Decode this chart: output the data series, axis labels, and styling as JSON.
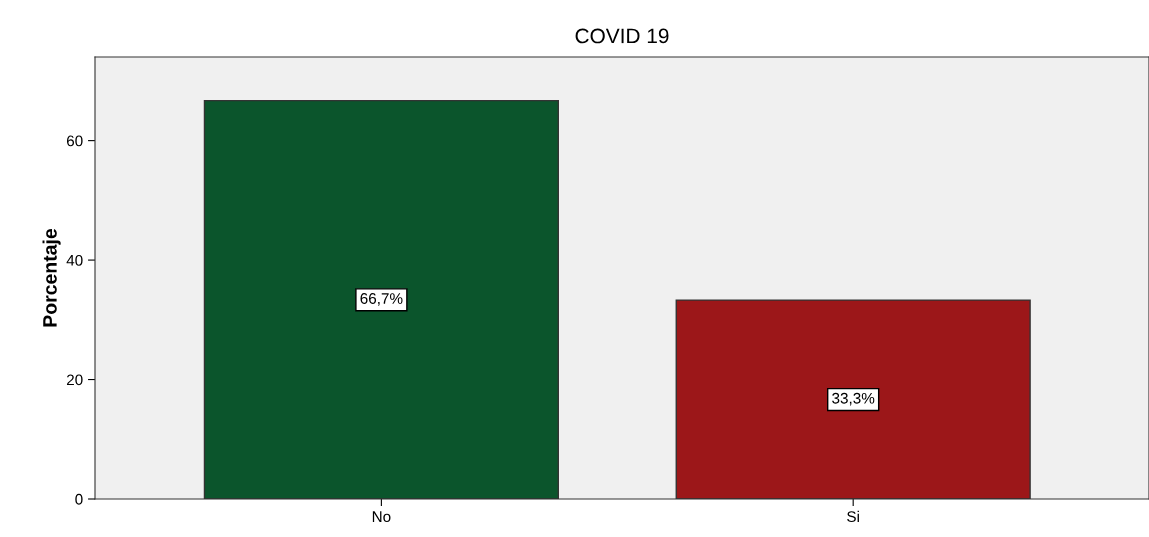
{
  "chart_data": {
    "type": "bar",
    "title": "COVID 19",
    "ylabel": "Porcentaje",
    "categories": [
      "No",
      "Si"
    ],
    "values": [
      66.7,
      33.3
    ],
    "colors": [
      "#0b552c",
      "#9c1719"
    ],
    "value_labels": [
      "66,7%",
      "33,3%"
    ],
    "ylim": [
      0,
      74
    ],
    "yticks": [
      0,
      20,
      40,
      60
    ]
  }
}
